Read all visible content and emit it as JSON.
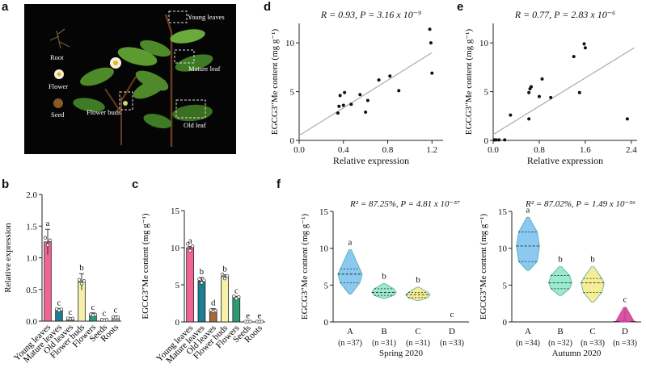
{
  "panels": {
    "a": "a",
    "b": "b",
    "c": "c",
    "d": "d",
    "e": "e",
    "f": "f"
  },
  "photo_labels": {
    "young_leaves": "Young leaves",
    "mature_leaf": "Mature leaf",
    "old_leaf": "Old leaf",
    "flower_buds": "Flower buds",
    "root": "Root",
    "flower": "Flower",
    "seed": "Seed"
  },
  "colors": {
    "young_leaves": "#f2648f",
    "mature_leaves": "#1d7d92",
    "old_leaves": "#a36a36",
    "flower_buds": "#f5f1a6",
    "flowers": "#2c9a73",
    "seeds": "#c9a9a6",
    "roots": "#b2a6c9",
    "violin_A": "#7ec3f0",
    "violin_B": "#8fe8c8",
    "violin_C": "#f4ec8c",
    "violin_D": "#d0459a"
  },
  "chart_data": [
    {
      "id": "b",
      "type": "bar",
      "ylabel": "Relative expression",
      "ylim": [
        0,
        2.0
      ],
      "yticks": [
        "0.0",
        "0.5",
        "1.0",
        "1.5",
        "2.0"
      ],
      "categories": [
        "Young leaves",
        "Mature leaves",
        "Old leaves",
        "Flower buds",
        "Flowers",
        "Seeds",
        "Roots"
      ],
      "values": [
        1.25,
        0.18,
        0.04,
        0.62,
        0.1,
        0.02,
        0.06
      ],
      "errors": [
        0.2,
        0.02,
        0.01,
        0.13,
        0.03,
        0.01,
        0.02
      ],
      "letters": [
        "a",
        "c",
        "c",
        "b",
        "c",
        "c",
        "c"
      ]
    },
    {
      "id": "c",
      "type": "bar",
      "ylabel": "EGCG3″Me content (mg g⁻¹)",
      "ylim": [
        0,
        15
      ],
      "yticks": [
        "0",
        "5",
        "10",
        "15"
      ],
      "categories": [
        "Young leaves",
        "Mature leaves",
        "Old leaves",
        "Flower buds",
        "Flowers",
        "Seeds",
        "Roots"
      ],
      "values": [
        10.0,
        5.5,
        1.5,
        6.1,
        3.3,
        0.05,
        0.05
      ],
      "errors": [
        0.15,
        0.5,
        0.3,
        0.25,
        0.15,
        0.02,
        0.02
      ],
      "letters": [
        "a",
        "b",
        "d",
        "b",
        "c",
        "e",
        "e"
      ]
    },
    {
      "id": "d",
      "type": "scatter",
      "annotation": "R = 0.93, P = 3.16 x 10⁻⁹",
      "xlabel": "Relative expression",
      "ylabel": "EGCG3″Me content (mg g⁻¹)",
      "xlim": [
        0,
        1.3
      ],
      "ylim": [
        0,
        12
      ],
      "xticks": [
        "0.0",
        "0.4",
        "0.8",
        "1.2"
      ],
      "yticks": [
        "0",
        "5",
        "10"
      ],
      "points": [
        [
          0.35,
          2.8
        ],
        [
          0.36,
          3.5
        ],
        [
          0.37,
          4.6
        ],
        [
          0.4,
          3.6
        ],
        [
          0.41,
          4.9
        ],
        [
          0.47,
          3.7
        ],
        [
          0.55,
          4.7
        ],
        [
          0.6,
          2.9
        ],
        [
          0.62,
          4.1
        ],
        [
          0.72,
          6.2
        ],
        [
          0.82,
          6.6
        ],
        [
          0.9,
          5.1
        ],
        [
          1.18,
          11.4
        ],
        [
          1.19,
          10.0
        ],
        [
          1.2,
          6.9
        ]
      ],
      "fit": [
        [
          0,
          0.5
        ],
        [
          1.2,
          9.0
        ]
      ]
    },
    {
      "id": "e",
      "type": "scatter",
      "annotation": "R = 0.77, P = 2.83 x 10⁻⁶",
      "xlabel": "Relative expression",
      "ylabel": "EGCG3″Me content (mg g⁻¹)",
      "xlim": [
        0,
        2.5
      ],
      "ylim": [
        0,
        12
      ],
      "xticks": [
        "0.0",
        "0.8",
        "1.6",
        "2.4"
      ],
      "yticks": [
        "0",
        "5",
        "10"
      ],
      "points": [
        [
          0.02,
          0.05
        ],
        [
          0.05,
          0.05
        ],
        [
          0.1,
          0.05
        ],
        [
          0.2,
          0.05
        ],
        [
          0.3,
          2.6
        ],
        [
          0.62,
          2.2
        ],
        [
          0.62,
          4.9
        ],
        [
          0.64,
          5.3
        ],
        [
          0.66,
          5.5
        ],
        [
          0.8,
          4.5
        ],
        [
          0.85,
          6.3
        ],
        [
          1.0,
          4.4
        ],
        [
          1.4,
          8.6
        ],
        [
          1.5,
          4.9
        ],
        [
          1.58,
          9.9
        ],
        [
          1.6,
          9.5
        ],
        [
          2.33,
          2.2
        ]
      ],
      "fit": [
        [
          0,
          0.6
        ],
        [
          2.45,
          9.5
        ]
      ]
    },
    {
      "id": "f1",
      "type": "violin",
      "annotation": "R² = 87.25%, P = 4.81 x 10⁻⁵⁷",
      "ylabel": "EGCG3″Me content (mg g⁻¹)",
      "ylim": [
        0,
        15
      ],
      "yticks": [
        "0",
        "5",
        "10",
        "15"
      ],
      "subtitle": "Spring 2020",
      "groups": [
        {
          "name": "A",
          "n": "(n =37)",
          "letter": "a",
          "min": 3.8,
          "q1": 5.3,
          "median": 6.5,
          "q3": 7.2,
          "max": 9.8
        },
        {
          "name": "B",
          "n": "(n =31)",
          "letter": "b",
          "min": 3.2,
          "q1": 3.6,
          "median": 4.0,
          "q3": 4.5,
          "max": 5.2
        },
        {
          "name": "C",
          "n": "(n =31)",
          "letter": "b",
          "min": 2.9,
          "q1": 3.3,
          "median": 3.7,
          "q3": 4.0,
          "max": 4.7
        },
        {
          "name": "D",
          "n": "(n =33)",
          "letter": "c",
          "min": 0,
          "q1": 0,
          "median": 0,
          "q3": 0,
          "max": 0
        }
      ]
    },
    {
      "id": "f2",
      "type": "violin",
      "annotation": "R² = 87.02%, P = 1.49 x 10⁻⁵⁶",
      "ylabel": "EGCG3″Me content (mg g⁻¹)",
      "ylim": [
        0,
        15
      ],
      "yticks": [
        "0",
        "5",
        "10",
        "15"
      ],
      "subtitle": "Autumn 2020",
      "groups": [
        {
          "name": "A",
          "n": "(n =34)",
          "letter": "a",
          "min": 7.0,
          "q1": 8.2,
          "median": 10.3,
          "q3": 12.2,
          "max": 14.2
        },
        {
          "name": "B",
          "n": "(n =32)",
          "letter": "b",
          "min": 3.6,
          "q1": 4.5,
          "median": 5.3,
          "q3": 6.3,
          "max": 7.5
        },
        {
          "name": "C",
          "n": "(n =33)",
          "letter": "b",
          "min": 2.7,
          "q1": 4.0,
          "median": 5.3,
          "q3": 5.9,
          "max": 7.5
        },
        {
          "name": "D",
          "n": "(n =33)",
          "letter": "c",
          "min": 0,
          "q1": 0,
          "median": 0.05,
          "q3": 0.05,
          "max": 2.0
        }
      ]
    }
  ]
}
